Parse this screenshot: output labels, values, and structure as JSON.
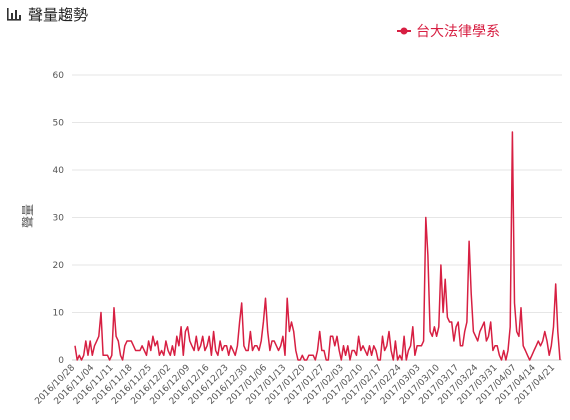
{
  "header": {
    "title": "聲量趨勢",
    "icon": "bar-chart-icon"
  },
  "chart_data": {
    "type": "line",
    "ylabel": "聲量",
    "xlabel": "",
    "ylim": [
      0,
      60
    ],
    "yticks": [
      0,
      10,
      20,
      30,
      40,
      50,
      60
    ],
    "grid": true,
    "legend_position": "top-right",
    "x_tick_labels": [
      "2016/10/28",
      "2016/11/04",
      "2016/11/11",
      "2016/11/18",
      "2016/11/25",
      "2016/12/02",
      "2016/12/09",
      "2016/12/16",
      "2016/12/23",
      "2016/12/30",
      "2017/01/06",
      "2017/01/13",
      "2017/01/20",
      "2017/01/27",
      "2017/02/03",
      "2017/02/10",
      "2017/02/17",
      "2017/02/24",
      "2017/03/03",
      "2017/03/10",
      "2017/03/17",
      "2017/03/24",
      "2017/03/31",
      "2017/04/07",
      "2017/04/14",
      "2017/04/21"
    ],
    "series": [
      {
        "name": "台大法律學系",
        "color": "#d71f42",
        "values": [
          3,
          0,
          1,
          0,
          1,
          4,
          1,
          4,
          1,
          3,
          4,
          5,
          10,
          1,
          1,
          1,
          0,
          1,
          11,
          5,
          4,
          1,
          0,
          3,
          4,
          4,
          4,
          3,
          2,
          2,
          2,
          3,
          2,
          1,
          4,
          2,
          5,
          3,
          4,
          1,
          2,
          1,
          4,
          2,
          1,
          3,
          1,
          5,
          3,
          7,
          1,
          6,
          7,
          4,
          3,
          2,
          5,
          2,
          3,
          5,
          2,
          3,
          5,
          1,
          6,
          2,
          1,
          4,
          2,
          3,
          3,
          1,
          3,
          2,
          1,
          3,
          8,
          12,
          3,
          2,
          2,
          6,
          2,
          3,
          3,
          2,
          4,
          8,
          13,
          6,
          2,
          4,
          4,
          3,
          2,
          3,
          5,
          1,
          13,
          6,
          8,
          6,
          2,
          0,
          0,
          1,
          0,
          0,
          1,
          1,
          1,
          0,
          2,
          6,
          2,
          2,
          0,
          0,
          5,
          5,
          3,
          5,
          2,
          0,
          3,
          1,
          3,
          0,
          2,
          2,
          1,
          5,
          2,
          3,
          2,
          1,
          3,
          1,
          3,
          2,
          0,
          0,
          5,
          2,
          3,
          6,
          2,
          0,
          4,
          0,
          1,
          0,
          5,
          0,
          2,
          3,
          7,
          1,
          3,
          3,
          3,
          4,
          30,
          22,
          6,
          5,
          7,
          5,
          7,
          20,
          10,
          17,
          9,
          8,
          8,
          4,
          7,
          8,
          3,
          3,
          6,
          8,
          25,
          14,
          6,
          5,
          4,
          6,
          7,
          8,
          4,
          5,
          8,
          2,
          3,
          3,
          1,
          0,
          2,
          0,
          2,
          7,
          48,
          12,
          6,
          5,
          11,
          3,
          2,
          1,
          0,
          1,
          2,
          3,
          4,
          3,
          4,
          6,
          4,
          1,
          3,
          7,
          16,
          6,
          0
        ]
      }
    ]
  }
}
